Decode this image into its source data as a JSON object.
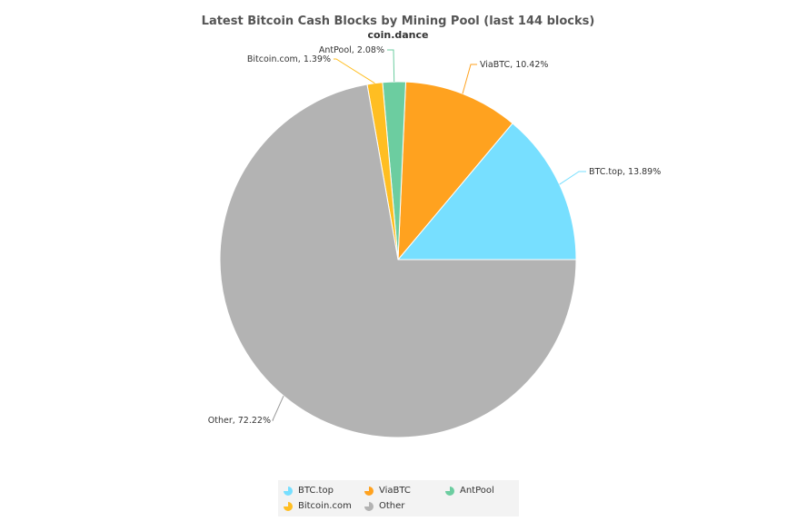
{
  "chart_data": {
    "type": "pie",
    "title": "Latest Bitcoin Cash Blocks by Mining Pool (last 144 blocks)",
    "subtitle": "coin.dance",
    "slices": [
      {
        "name": "BTC.top",
        "value": 13.89,
        "label": "BTC.top, 13.89%",
        "color": "#77dfff"
      },
      {
        "name": "ViaBTC",
        "value": 10.42,
        "label": "ViaBTC, 10.42%",
        "color": "#ffa21f"
      },
      {
        "name": "AntPool",
        "value": 2.08,
        "label": "AntPool, 2.08%",
        "color": "#6ccda0"
      },
      {
        "name": "Bitcoin.com",
        "value": 1.39,
        "label": "Bitcoin.com, 1.39%",
        "color": "#ffbe22"
      },
      {
        "name": "Other",
        "value": 72.22,
        "label": "Other, 72.22%",
        "color": "#b3b3b3"
      }
    ],
    "legend": {
      "placement": "bottom",
      "items": [
        "BTC.top",
        "ViaBTC",
        "AntPool",
        "Bitcoin.com",
        "Other"
      ]
    }
  }
}
